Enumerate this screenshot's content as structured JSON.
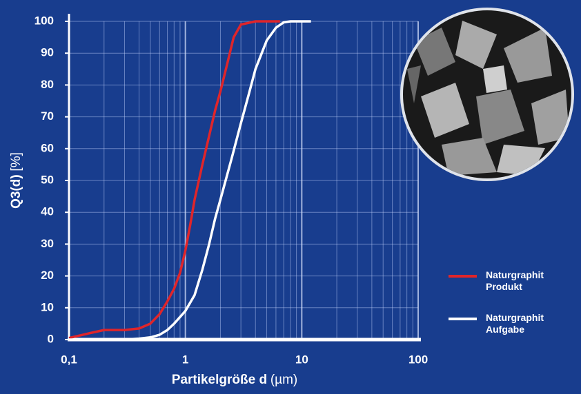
{
  "chart_data": {
    "type": "line",
    "xlabel": "Partikelgröße d",
    "xunit": "(µm)",
    "ylabel": "Q3(d)",
    "yunit": "[%]",
    "xscale": "log",
    "xlim": [
      0.1,
      100
    ],
    "ylim": [
      0,
      100
    ],
    "xticks": [
      {
        "value": 0.1,
        "label": "0,1"
      },
      1,
      10,
      100
    ],
    "yticks": [
      0,
      10,
      20,
      30,
      40,
      50,
      60,
      70,
      80,
      90,
      100
    ],
    "grid": true,
    "legend": "right",
    "series": [
      {
        "name": "Naturgraphit Produkt",
        "color": "#e0252a",
        "x": [
          0.1,
          0.15,
          0.2,
          0.3,
          0.4,
          0.5,
          0.6,
          0.7,
          0.8,
          0.9,
          1.0,
          1.1,
          1.2,
          1.4,
          1.6,
          1.8,
          2,
          2.3,
          2.6,
          3,
          4,
          6.5
        ],
        "values": [
          0.5,
          2,
          3,
          3,
          3.5,
          5,
          8,
          12,
          16,
          21,
          28,
          36,
          44,
          55,
          64,
          72,
          78,
          87,
          95,
          99,
          100,
          100
        ]
      },
      {
        "name": "Naturgraphit Aufgabe",
        "color": "#ffffff",
        "x": [
          0.1,
          0.3,
          0.4,
          0.5,
          0.6,
          0.7,
          0.8,
          1,
          1.2,
          1.4,
          1.6,
          1.8,
          2,
          2.5,
          3,
          3.5,
          4,
          5,
          6,
          7,
          8,
          12
        ],
        "values": [
          0,
          0,
          0.3,
          0.7,
          1.5,
          3,
          5,
          9,
          14,
          22,
          30,
          38,
          44,
          57,
          68,
          77,
          85,
          94,
          98,
          99.7,
          100,
          100
        ]
      }
    ]
  }
}
